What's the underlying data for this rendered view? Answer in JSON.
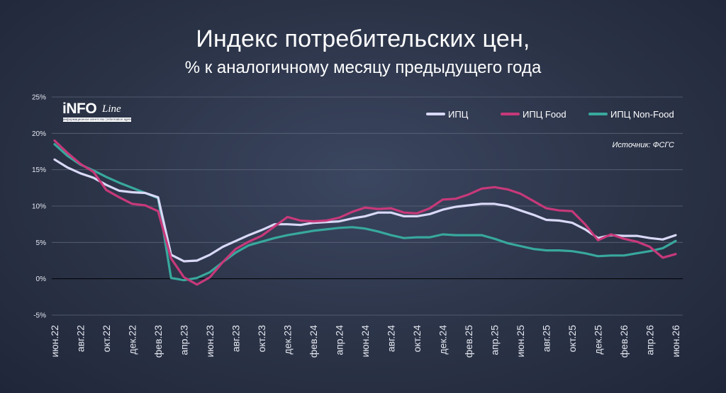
{
  "header": {
    "title": "Индекс потребительских цен,",
    "subtitle": "% к аналогичному месяцу предыдущего года"
  },
  "logo": {
    "main": "iNFO",
    "script": "Line",
    "tagline": "информационное агентство | information agency |"
  },
  "source": "Источник: ФСГС",
  "colors": {
    "background": "#2b3347",
    "grid": "#5b6478",
    "zero_line": "#000000",
    "cpi": "#d9d9f7",
    "cpi_food": "#c7397a",
    "cpi_nonfood": "#38a89d"
  },
  "chart_data": {
    "type": "line",
    "title": "Индекс потребительских цен,",
    "subtitle": "% к аналогичному месяцу предыдущего года",
    "xlabel": "",
    "ylabel": "",
    "ylim": [
      -5,
      25
    ],
    "yticks": [
      -5,
      0,
      5,
      10,
      15,
      20,
      25
    ],
    "ytick_labels": [
      "-5%",
      "0%",
      "5%",
      "10%",
      "15%",
      "20%",
      "25%"
    ],
    "grid": true,
    "legend": "top-right",
    "categories": [
      "июн.22",
      "июл.22",
      "авг.22",
      "сен.22",
      "окт.22",
      "ноя.22",
      "дек.22",
      "янв.23",
      "фев.23",
      "мар.23",
      "апр.23",
      "май.23",
      "июн.23",
      "июл.23",
      "авг.23",
      "сен.23",
      "окт.23",
      "ноя.23",
      "дек.23",
      "янв.24",
      "фев.24",
      "мар.24",
      "апр.24",
      "май.24",
      "июн.24",
      "июл.24",
      "авг.24",
      "сен.24",
      "окт.24",
      "ноя.24",
      "дек.24",
      "янв.25",
      "фев.25",
      "мар.25",
      "апр.25",
      "май.25",
      "июн.25",
      "июл.25",
      "авг.25",
      "сен.25",
      "окт.25",
      "ноя.25",
      "дек.25",
      "янв.26",
      "фев.26",
      "мар.26",
      "апр.26",
      "май.26",
      "июн.26"
    ],
    "x_tick_labels": [
      "июн.22",
      "авг.22",
      "окт.22",
      "дек.22",
      "фев.23",
      "апр.23",
      "июн.23",
      "авг.23",
      "окт.23",
      "дек.23",
      "фев.24",
      "апр.24",
      "июн.24",
      "авг.24",
      "окт.24",
      "дек.24",
      "фев.25",
      "апр.25",
      "июн.25",
      "авг.25",
      "окт.25",
      "дек.25",
      "фев.26",
      "апр.26",
      "июн.26"
    ],
    "series": [
      {
        "name": "ИПЦ",
        "color": "#d9d9f7",
        "values": [
          16.4,
          15.3,
          14.5,
          13.9,
          12.9,
          12.1,
          11.9,
          11.8,
          11.2,
          3.3,
          2.4,
          2.5,
          3.3,
          4.4,
          5.2,
          6.0,
          6.7,
          7.5,
          7.5,
          7.4,
          7.7,
          7.8,
          7.9,
          8.3,
          8.6,
          9.1,
          9.1,
          8.6,
          8.6,
          8.9,
          9.5,
          9.9,
          10.1,
          10.3,
          10.3,
          10.0,
          9.4,
          8.8,
          8.1,
          8.0,
          7.7,
          6.8,
          5.6,
          6.0,
          5.9,
          5.9,
          5.6,
          5.4,
          6.0
        ]
      },
      {
        "name": "ИПЦ Food",
        "color": "#c7397a",
        "values": [
          19.0,
          17.3,
          15.8,
          14.7,
          12.2,
          11.2,
          10.3,
          10.1,
          9.3,
          2.8,
          0.2,
          -0.8,
          0.2,
          2.3,
          4.1,
          5.1,
          5.9,
          7.2,
          8.5,
          8.0,
          7.9,
          8.0,
          8.4,
          9.2,
          9.8,
          9.6,
          9.7,
          9.1,
          9.0,
          9.7,
          10.9,
          11.0,
          11.6,
          12.4,
          12.6,
          12.3,
          11.7,
          10.7,
          9.7,
          9.4,
          9.3,
          7.5,
          5.3,
          6.1,
          5.5,
          5.1,
          4.4,
          2.9,
          3.4
        ]
      },
      {
        "name": "ИПЦ Non-Food",
        "color": "#38a89d",
        "values": [
          18.5,
          16.9,
          15.7,
          14.9,
          14.0,
          13.2,
          12.5,
          11.8,
          11.1,
          0.1,
          -0.2,
          0.1,
          0.9,
          2.3,
          3.6,
          4.6,
          5.1,
          5.6,
          6.0,
          6.3,
          6.6,
          6.8,
          7.0,
          7.1,
          6.9,
          6.5,
          6.0,
          5.6,
          5.7,
          5.7,
          6.1,
          6.0,
          6.0,
          6.0,
          5.5,
          4.9,
          4.5,
          4.1,
          3.9,
          3.9,
          3.8,
          3.5,
          3.1,
          3.2,
          3.2,
          3.5,
          3.8,
          4.2,
          5.2
        ]
      }
    ]
  }
}
